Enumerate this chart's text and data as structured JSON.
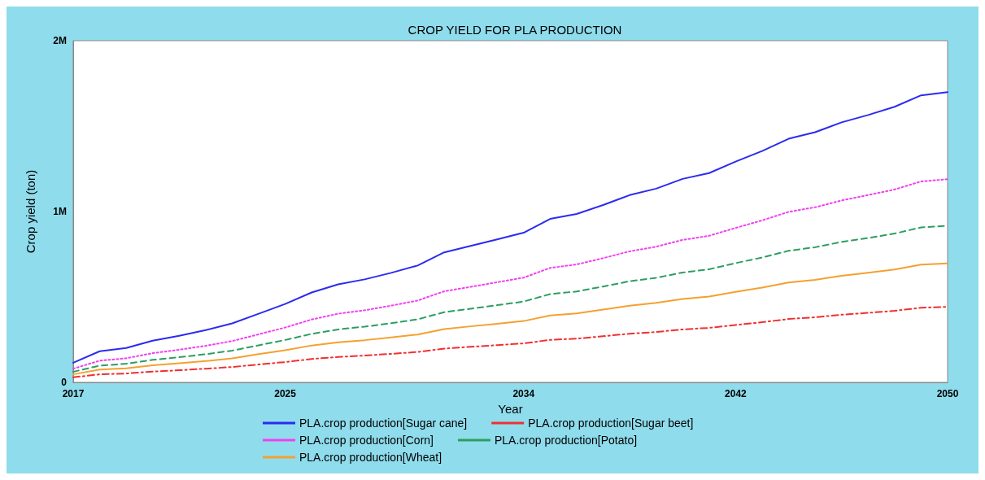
{
  "chart_data": {
    "type": "line",
    "title": "CROP YIELD FOR PLA PRODUCTION",
    "xlabel": "Year",
    "ylabel": "Crop yield (ton)",
    "x": [
      2017,
      2018,
      2019,
      2020,
      2021,
      2022,
      2023,
      2024,
      2025,
      2026,
      2027,
      2028,
      2029,
      2030,
      2031,
      2032,
      2033,
      2034,
      2035,
      2036,
      2037,
      2038,
      2039,
      2040,
      2041,
      2042,
      2043,
      2044,
      2045,
      2046,
      2047,
      2048,
      2049,
      2050
    ],
    "xlim": [
      2017,
      2050
    ],
    "xticks": [
      2017,
      2025,
      2034,
      2042,
      2050
    ],
    "ylim": [
      0,
      2000000
    ],
    "yticks": [
      {
        "value": 0,
        "label": "0"
      },
      {
        "value": 1000000,
        "label": "1M"
      },
      {
        "value": 2000000,
        "label": "2M"
      }
    ],
    "grid": false,
    "legend": "bottom",
    "marker": "none",
    "series": [
      {
        "name": "PLA.crop production[Sugar cane]",
        "color": "#2b2bf0",
        "line_style": "solid",
        "values": [
          115000,
          182000,
          201000,
          244000,
          273000,
          306000,
          345000,
          402000,
          459000,
          526000,
          574000,
          603000,
          641000,
          684000,
          761000,
          799000,
          837000,
          876000,
          957000,
          986000,
          1038000,
          1096000,
          1134000,
          1191000,
          1225000,
          1292000,
          1354000,
          1426000,
          1464000,
          1522000,
          1565000,
          1613000,
          1680000,
          1699000
        ]
      },
      {
        "name": "PLA.crop production[Sugar beet]",
        "color": "#f03030",
        "line_style": "dashdot",
        "values": [
          30000,
          47000,
          52000,
          63000,
          71000,
          80000,
          90000,
          105000,
          119000,
          137000,
          149000,
          157000,
          167000,
          178000,
          198000,
          208000,
          218000,
          228000,
          249000,
          256000,
          270000,
          285000,
          295000,
          310000,
          319000,
          336000,
          352000,
          371000,
          381000,
          396000,
          407000,
          419000,
          437000,
          442000
        ]
      },
      {
        "name": "PLA.crop production[Corn]",
        "color": "#f040f0",
        "line_style": "dotted",
        "values": [
          80000,
          127000,
          141000,
          171000,
          191000,
          214000,
          242000,
          281000,
          321000,
          368000,
          402000,
          422000,
          449000,
          479000,
          533000,
          559000,
          586000,
          613000,
          670000,
          690000,
          727000,
          767000,
          794000,
          834000,
          858000,
          904000,
          948000,
          998000,
          1025000,
          1065000,
          1096000,
          1129000,
          1176000,
          1189000
        ]
      },
      {
        "name": "PLA.crop production[Potato]",
        "color": "#2e9e60",
        "line_style": "dashed",
        "values": [
          62000,
          98000,
          109000,
          132000,
          147000,
          165000,
          186000,
          217000,
          248000,
          284000,
          310000,
          326000,
          346000,
          369000,
          411000,
          431000,
          452000,
          473000,
          517000,
          532000,
          561000,
          592000,
          612000,
          643000,
          662000,
          698000,
          731000,
          770000,
          791000,
          822000,
          845000,
          871000,
          907000,
          917000
        ]
      },
      {
        "name": "PLA.crop production[Wheat]",
        "color": "#f5a030",
        "line_style": "solid",
        "values": [
          47000,
          75000,
          82000,
          100000,
          112000,
          125000,
          141000,
          165000,
          188000,
          216000,
          235000,
          247000,
          263000,
          280000,
          312000,
          328000,
          343000,
          359000,
          392000,
          404000,
          426000,
          449000,
          465000,
          488000,
          502000,
          530000,
          555000,
          585000,
          600000,
          624000,
          642000,
          661000,
          689000,
          697000
        ]
      }
    ]
  }
}
